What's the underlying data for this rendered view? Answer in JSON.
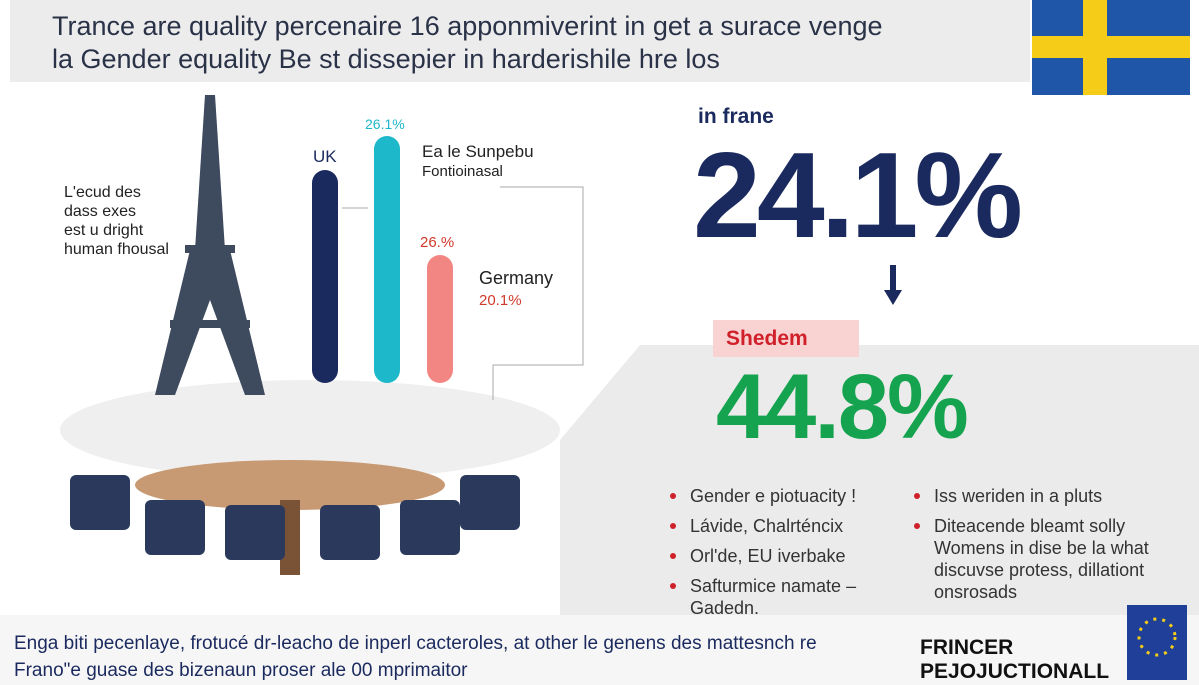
{
  "header": {
    "lines": [
      "Trance are quality percenaire 16 apponmiverint in get a surace venge",
      "la Gender equality Be st dissepier in harderishile hre los"
    ]
  },
  "left_note": {
    "lines": [
      "L'ecud des",
      "dass exes",
      "est u dright",
      "human fhousal"
    ]
  },
  "bar_chart": {
    "labels": [
      "UK",
      "26.1%",
      "Ea le Sunpebu",
      "Fontioinasal",
      "26.%",
      "Germany",
      "20.1%"
    ]
  },
  "france": {
    "label": "in frane",
    "value": "24.1%"
  },
  "sweden": {
    "label": "Shedem",
    "value": "44.8%"
  },
  "bullets_left": [
    "Gender e piotuacity !",
    "Lávide, Chalrténcix",
    "Orl'de, EU iverbake",
    "Safturmice namate – Gadedn."
  ],
  "bullets_right": [
    "Iss weriden in a pluts",
    "Diteacende bleamt solly Womens in dise be la what discuvse protess, dillationt onsrosads"
  ],
  "footer": {
    "lines": [
      "Enga biti pecenlaye, frotucé dr-leacho de inperl cacteroles, at other le genens des mattesnch re",
      "Frano\"e guase des bizenaun proser ale 00 mprimaitor"
    ]
  },
  "logo": {
    "lines": [
      "FRINCER",
      "PEJOJUCTIONALL"
    ]
  }
}
